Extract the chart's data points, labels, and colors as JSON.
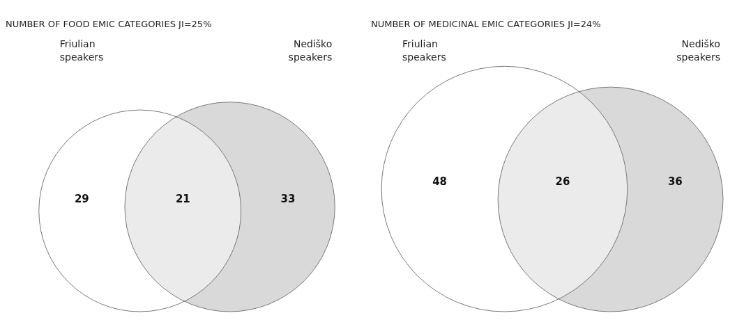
{
  "chart_data": [
    {
      "type": "other",
      "title": "NUMBER OF FOOD EMIC CATEGORIES JI=25%",
      "categories": [
        "Friulian speakers",
        null,
        "Nediško speakers"
      ],
      "values": [
        29,
        21,
        33
      ],
      "colors": [
        "#ffffff",
        "#ebebeb",
        "#d9d9d9"
      ],
      "data_labels": true
    },
    {
      "type": "other",
      "title": "NUMBER OF MEDICINAL EMIC CATEGORIES JI=24%",
      "categories": [
        "Friulian speakers",
        null,
        "Nediško speakers"
      ],
      "values": [
        48,
        26,
        36
      ],
      "colors": [
        "#ffffff",
        "#ebebeb",
        "#d9d9d9"
      ],
      "data_labels": true
    }
  ]
}
